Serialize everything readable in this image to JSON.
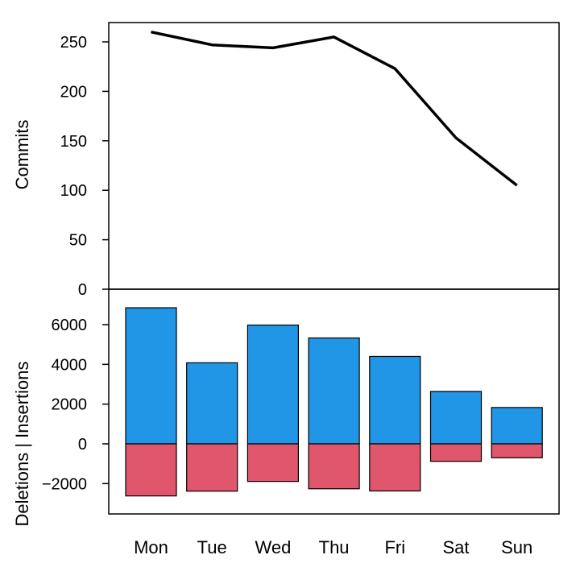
{
  "chart_data": [
    {
      "type": "line",
      "ylabel": "Commits",
      "categories": [
        "Mon",
        "Tue",
        "Wed",
        "Thu",
        "Fri",
        "Sat",
        "Sun"
      ],
      "values": [
        260,
        247,
        244,
        255,
        223,
        153,
        105
      ],
      "ylim": [
        0,
        270
      ],
      "yticks": [
        0,
        50,
        100,
        150,
        200,
        250
      ],
      "line_color": "#000000",
      "grid": false
    },
    {
      "type": "bar",
      "ylabel": "Deletions | Insertions",
      "categories": [
        "Mon",
        "Tue",
        "Wed",
        "Thu",
        "Fri",
        "Sat",
        "Sun"
      ],
      "series": [
        {
          "values": [
            6850,
            4080,
            5980,
            5330,
            4400,
            2640,
            1830
          ],
          "color": "#2196e6"
        },
        {
          "values": [
            -2620,
            -2380,
            -1890,
            -2260,
            -2370,
            -880,
            -700
          ],
          "color": "#e0566c"
        }
      ],
      "ylim": [
        -3500,
        7200
      ],
      "yticks": [
        -2000,
        0,
        2000,
        4000,
        6000
      ],
      "ytick_labels": [
        "−2000",
        "0",
        "2000",
        "4000",
        "6000"
      ],
      "grid": false
    }
  ]
}
